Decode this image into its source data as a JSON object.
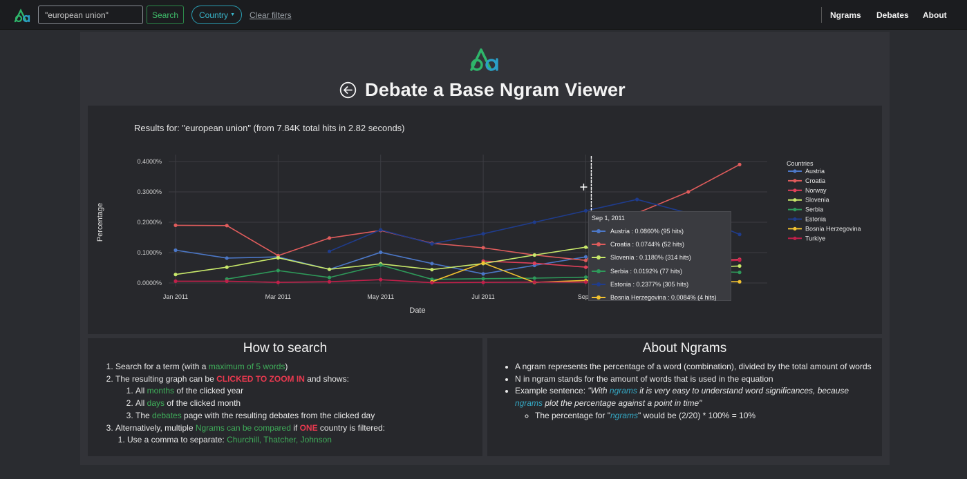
{
  "nav": {
    "search_value": "\"european union\"",
    "search_label": "Search",
    "country_label": "Country",
    "clear_label": "Clear filters",
    "links": [
      "Ngrams",
      "Debates",
      "About"
    ]
  },
  "header": {
    "title": "Debate a Base Ngram Viewer"
  },
  "results_text": "Results for: \"european union\" (from 7.84K total hits in 2.82 seconds)",
  "chart_data": {
    "type": "line",
    "xlabel": "Date",
    "ylabel": "Percentage",
    "x_ticks": [
      "Jan 2011",
      "Mar 2011",
      "May 2011",
      "Jul 2011",
      "Sep 2011"
    ],
    "x_tick_visible": [
      "Jan 2011",
      "Mar 2011",
      "May 2011",
      "Jul 2011",
      "Sep 2"
    ],
    "y_ticks": [
      "0.0000%",
      "0.1000%",
      "0.2000%",
      "0.3000%",
      "0.4000%"
    ],
    "ylim": [
      0,
      0.4
    ],
    "legend_title": "Countries",
    "legend_position": "right",
    "hover_date": "Sep 1, 2011",
    "x": [
      "2011-01",
      "2011-02",
      "2011-03",
      "2011-04",
      "2011-05",
      "2011-06",
      "2011-07",
      "2011-08",
      "2011-09",
      "2011-10",
      "2011-11",
      "2011-12"
    ],
    "series": [
      {
        "name": "Austria",
        "color": "#4c78c8",
        "values": [
          0.108,
          0.082,
          0.086,
          0.045,
          0.101,
          0.064,
          0.03,
          0.058,
          0.086,
          null,
          null,
          null
        ]
      },
      {
        "name": "Croatia",
        "color": "#e05c5c",
        "values": [
          0.19,
          0.189,
          0.09,
          0.148,
          0.173,
          0.131,
          0.116,
          0.092,
          0.0744,
          0.23,
          0.3,
          0.39
        ]
      },
      {
        "name": "Norway",
        "color": "#e0405a",
        "values": [
          null,
          null,
          null,
          null,
          null,
          null,
          0.072,
          0.065,
          0.052,
          0.06,
          0.07,
          0.078
        ]
      },
      {
        "name": "Slovenia",
        "color": "#c8e86a",
        "values": [
          0.028,
          0.052,
          0.083,
          0.045,
          0.063,
          0.044,
          0.064,
          0.092,
          0.118,
          0.06,
          0.05,
          0.056
        ]
      },
      {
        "name": "Serbia",
        "color": "#2e9a5a",
        "values": [
          null,
          0.013,
          0.041,
          0.018,
          0.059,
          0.012,
          0.014,
          0.016,
          0.0192,
          0.03,
          0.04,
          0.035
        ]
      },
      {
        "name": "Estonia",
        "color": "#1f3c8c",
        "values": [
          null,
          null,
          null,
          0.104,
          0.175,
          0.129,
          0.162,
          0.2,
          0.2377,
          0.275,
          0.23,
          0.16
        ]
      },
      {
        "name": "Bosnia Herzegovina",
        "color": "#f2c230",
        "values": [
          null,
          null,
          null,
          null,
          null,
          0.004,
          0.066,
          0.002,
          0.0084,
          0.006,
          0.005,
          0.004
        ]
      },
      {
        "name": "Turkiye",
        "color": "#c0204a",
        "values": [
          0.006,
          0.006,
          0.002,
          0.004,
          0.011,
          0.001,
          0.002,
          0.003,
          0.003,
          0.01,
          0.065,
          0.075
        ]
      }
    ]
  },
  "tooltip": {
    "date": "Sep 1, 2011",
    "rows": [
      {
        "text": "Austria : 0.0860% (95 hits)",
        "color": "#4c78c8"
      },
      {
        "text": "Croatia : 0.0744% (52 hits)",
        "color": "#e05c5c"
      },
      {
        "text": "Slovenia : 0.1180% (314 hits)",
        "color": "#c8e86a"
      },
      {
        "text": "Serbia : 0.0192% (77 hits)",
        "color": "#2e9a5a"
      },
      {
        "text": "Estonia : 0.2377% (305 hits)",
        "color": "#1f3c8c"
      },
      {
        "text": "Bosnia Herzegovina : 0.0084% (4 hits)",
        "color": "#f2c230"
      }
    ]
  },
  "how_to": {
    "title": "How to search",
    "i1_pre": "Search for a term (with a ",
    "i1_green": "maximum of 5 words",
    "i1_post": ")",
    "i2_pre": "The resulting graph can be ",
    "i2_red": "CLICKED TO ZOOM IN",
    "i2_post": " and shows:",
    "s1_pre": "All ",
    "s1_green": "months",
    "s1_post": " of the clicked year",
    "s2_pre": "All ",
    "s2_green": "days",
    "s2_post": " of the clicked month",
    "s3_pre": "The ",
    "s3_green": "debates",
    "s3_post": " page with the resulting debates from the clicked day",
    "i3_pre": "Alternatively, multiple ",
    "i3_green": "Ngrams can be compared",
    "i3_mid": " if ",
    "i3_red": "ONE",
    "i3_post": " country is filtered:",
    "t1_pre": "Use a comma to separate: ",
    "t1_green": "Churchill, Thatcher, Johnson"
  },
  "about": {
    "title": "About Ngrams",
    "b1": "A ngram represents the percentage of a word (combination), divided by the total amount of words",
    "b2": "N in ngram stands for the amount of words that is used in the equation",
    "b3_pre": "Example sentence: ",
    "b3_q1": "\"With ",
    "b3_c1": "ngrams",
    "b3_q2": " it is very easy to understand word significances, because ",
    "b3_c2": "ngrams",
    "b3_q3": " plot the percentage against a point in time\"",
    "c1_pre": "The percentage for \"",
    "c1_cyan": "ngrams",
    "c1_post": "\" would be (2/20) * 100% = 10%"
  }
}
